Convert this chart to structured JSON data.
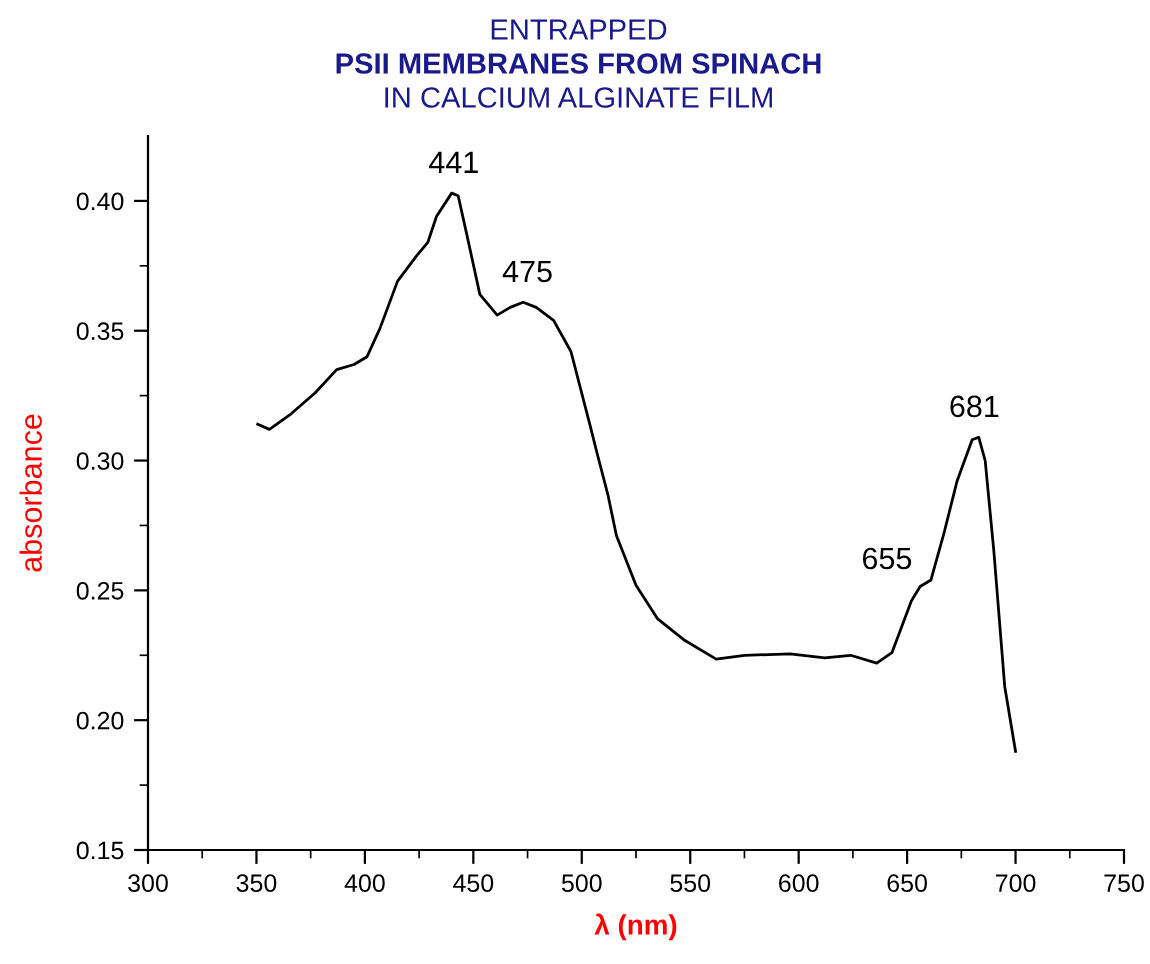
{
  "chart_data": {
    "type": "line",
    "title": "ENTRAPPED\nPSII MEMBRANES FROM SPINACH\nIN CALCIUM ALGINATE FILM",
    "xlabel": "λ (nm)",
    "ylabel": "absorbance",
    "x": [
      350.6,
      356,
      366,
      377,
      387,
      395,
      401,
      407,
      415,
      424,
      429,
      433,
      440,
      443,
      447,
      453,
      461,
      467,
      473,
      479,
      487,
      495,
      504,
      507,
      512,
      516,
      525,
      535,
      547,
      562,
      575,
      596,
      612,
      624,
      636,
      643,
      652,
      656,
      661,
      667,
      673,
      680,
      683,
      686,
      690,
      695,
      700
    ],
    "series": [
      {
        "color": "#000000",
        "values": [
          0.314,
          0.312,
          0.318,
          0.326,
          0.335,
          0.337,
          0.34,
          0.351,
          0.369,
          0.379,
          0.384,
          0.394,
          0.403,
          0.402,
          0.387,
          0.364,
          0.356,
          0.359,
          0.361,
          0.359,
          0.354,
          0.342,
          0.313,
          0.303,
          0.287,
          0.271,
          0.252,
          0.239,
          0.231,
          0.2235,
          0.225,
          0.2255,
          0.224,
          0.225,
          0.222,
          0.226,
          0.246,
          0.2515,
          0.254,
          0.272,
          0.292,
          0.308,
          0.309,
          0.3,
          0.265,
          0.213,
          0.188
        ]
      }
    ],
    "annotations": [
      {
        "text": "441",
        "x": 441,
        "y": 0.403
      },
      {
        "text": "475",
        "x": 475,
        "y": 0.361
      },
      {
        "text": "655",
        "x": 655,
        "y": 0.2515
      },
      {
        "text": "681",
        "x": 681,
        "y": 0.309
      }
    ],
    "xlim": [
      300,
      750
    ],
    "xticks": [
      300,
      350,
      400,
      450,
      500,
      550,
      600,
      650,
      700,
      750
    ],
    "ylim": [
      0.15,
      0.425
    ],
    "yticks": [
      {
        "value": 0.15,
        "label": "0.15"
      },
      {
        "value": 0.2,
        "label": "0.20"
      },
      {
        "value": 0.25,
        "label": "0.25"
      },
      {
        "value": 0.3,
        "label": "0.30"
      },
      {
        "value": 0.35,
        "label": "0.35"
      },
      {
        "value": 0.4,
        "label": "0.40"
      }
    ],
    "grid": false,
    "legend": false,
    "marker": "none",
    "line_style": "solid"
  }
}
